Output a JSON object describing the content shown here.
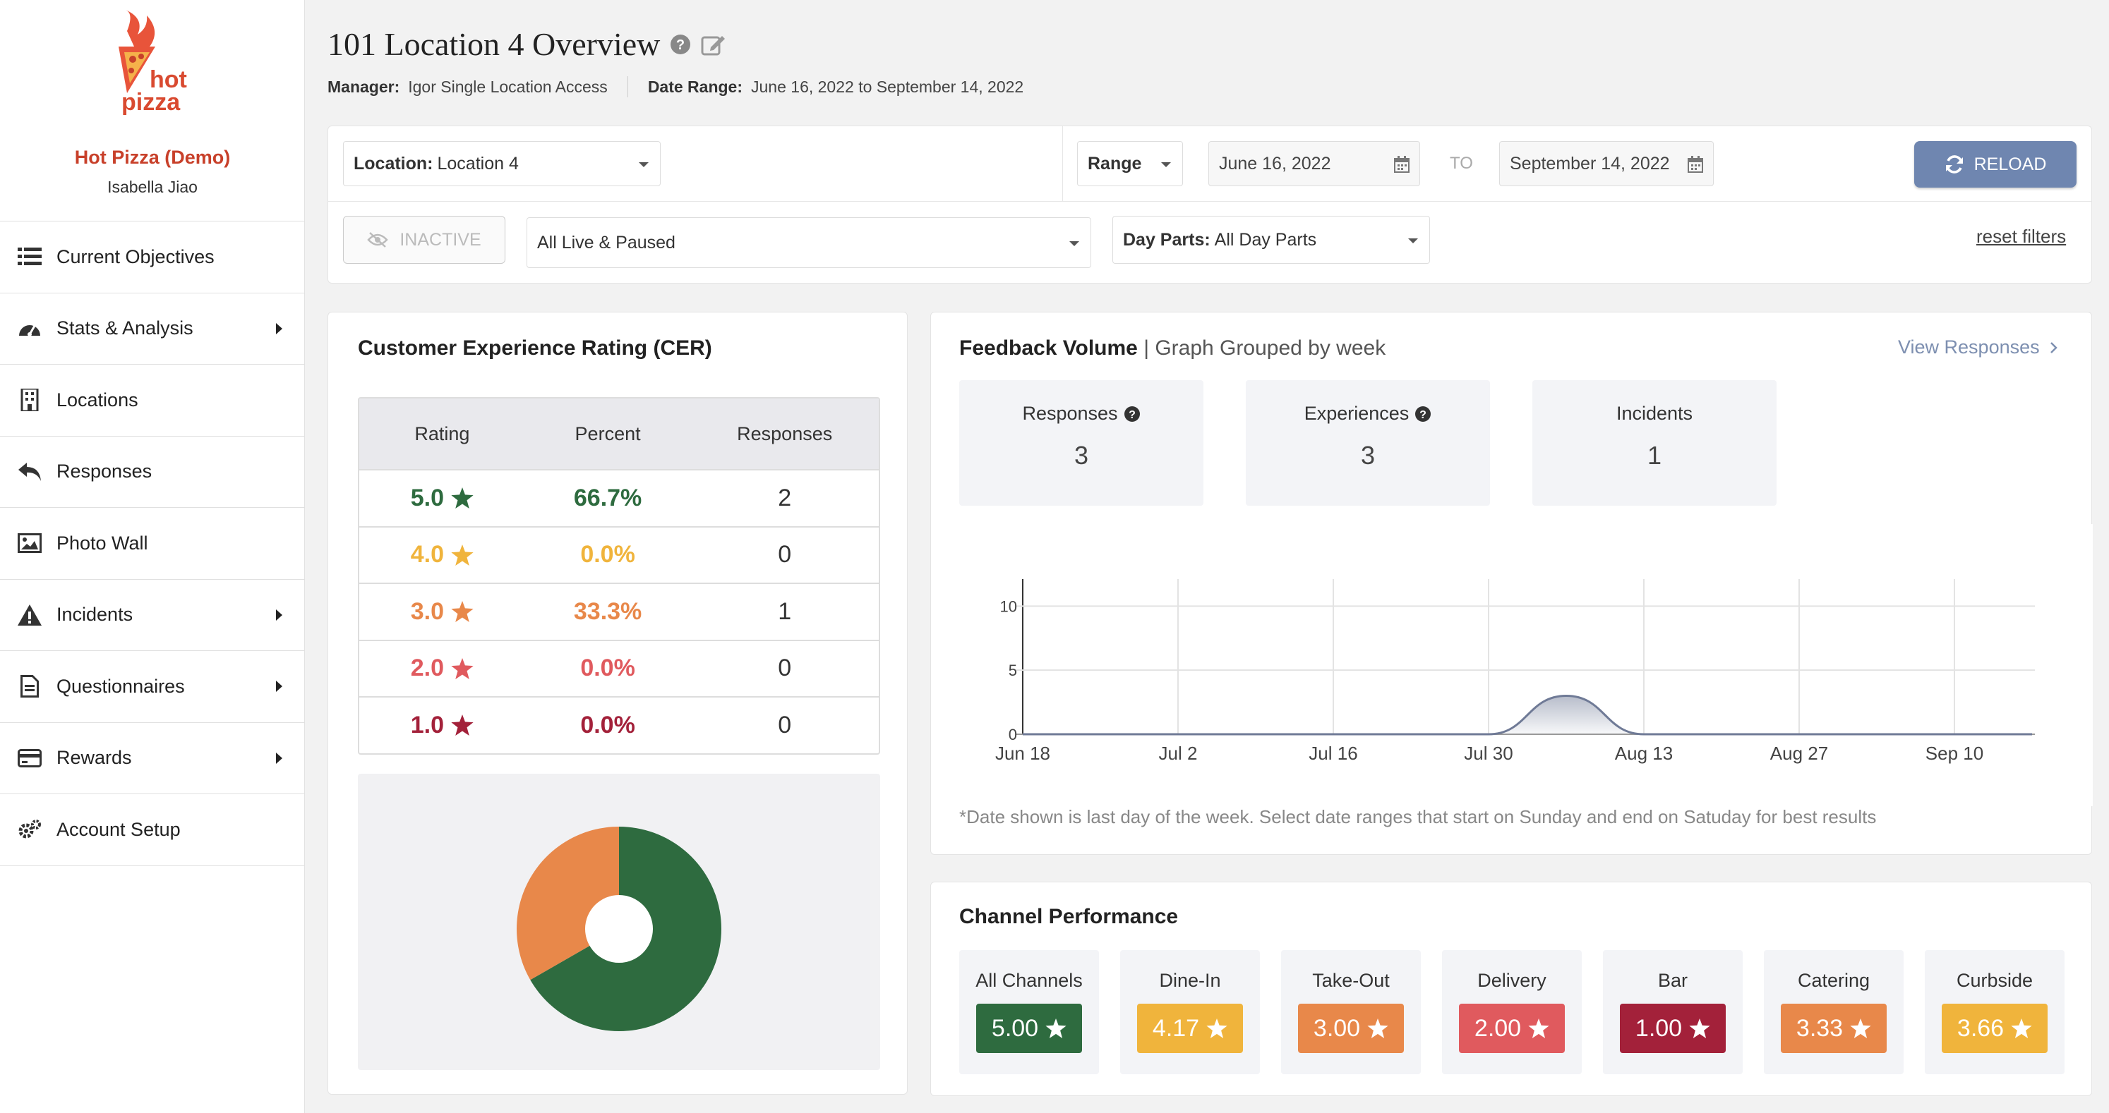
{
  "sidebar": {
    "logo_text_1": "hot",
    "logo_text_2": "pizza",
    "brand_name": "Hot Pizza (Demo)",
    "user_name": "Isabella Jiao",
    "items": [
      {
        "label": "Current Objectives",
        "icon": "list-icon"
      },
      {
        "label": "Stats & Analysis",
        "icon": "dashboard-icon"
      },
      {
        "label": "Locations",
        "icon": "building-icon"
      },
      {
        "label": "Responses",
        "icon": "reply-icon"
      },
      {
        "label": "Photo Wall",
        "icon": "image-icon"
      },
      {
        "label": "Incidents",
        "icon": "warning-icon"
      },
      {
        "label": "Questionnaires",
        "icon": "document-icon"
      },
      {
        "label": "Rewards",
        "icon": "credit-card-icon"
      },
      {
        "label": "Account Setup",
        "icon": "gears-icon"
      }
    ]
  },
  "header": {
    "title": "101 Location 4 Overview",
    "manager_label": "Manager:",
    "manager_value": "Igor Single Location Access",
    "date_range_label": "Date Range:",
    "date_range_value": "June 16, 2022 to September 14, 2022"
  },
  "filters": {
    "location_label": "Location:",
    "location_value": "Location 4",
    "range_label": "Range",
    "start_date": "June 16, 2022",
    "to_label": "TO",
    "end_date": "September 14, 2022",
    "reload_label": "RELOAD",
    "inactive_label": "INACTIVE",
    "status_value": "All Live & Paused",
    "day_parts_label": "Day Parts:",
    "day_parts_value": "All Day Parts",
    "reset_label": "reset filters"
  },
  "cer": {
    "title": "Customer Experience Rating (CER)",
    "headers": [
      "Rating",
      "Percent",
      "Responses"
    ],
    "rows": [
      {
        "rating": "5.0",
        "percent": "66.7%",
        "responses": "2",
        "color": "#2e6b3f"
      },
      {
        "rating": "4.0",
        "percent": "0.0%",
        "responses": "0",
        "color": "#f0b43c"
      },
      {
        "rating": "3.0",
        "percent": "33.3%",
        "responses": "1",
        "color": "#e8884a"
      },
      {
        "rating": "2.0",
        "percent": "0.0%",
        "responses": "0",
        "color": "#e05a5e"
      },
      {
        "rating": "1.0",
        "percent": "0.0%",
        "responses": "0",
        "color": "#a3213a"
      }
    ],
    "pie": [
      {
        "label": "5.0",
        "percent": 66.7,
        "color": "#2e6b3f"
      },
      {
        "label": "3.0",
        "percent": 33.3,
        "color": "#e8884a"
      }
    ]
  },
  "feedback": {
    "title": "Feedback Volume",
    "subtitle": "| Graph Grouped by week",
    "view_responses": "View Responses",
    "stats": [
      {
        "label": "Responses",
        "value": "3",
        "help": true
      },
      {
        "label": "Experiences",
        "value": "3",
        "help": true
      },
      {
        "label": "Incidents",
        "value": "1",
        "help": false
      }
    ],
    "note": "*Date shown is last day of the week. Select date ranges that start on Sunday and end on Satuday for best results"
  },
  "chart_data": {
    "type": "area",
    "title": "Feedback Volume",
    "x_ticks": [
      "Jun 18",
      "Jul 2",
      "Jul 16",
      "Jul 30",
      "Aug 13",
      "Aug 27",
      "Sep 10"
    ],
    "y_ticks": [
      0,
      5,
      10
    ],
    "ylim": [
      0,
      12
    ],
    "series": [
      {
        "name": "Responses",
        "x": [
          "Jun 18",
          "Jun 25",
          "Jul 2",
          "Jul 9",
          "Jul 16",
          "Jul 23",
          "Jul 30",
          "Aug 6",
          "Aug 13",
          "Aug 20",
          "Aug 27",
          "Sep 3",
          "Sep 10",
          "Sep 17"
        ],
        "values": [
          0,
          0,
          0,
          0,
          0,
          0,
          0,
          3,
          0,
          0,
          0,
          0,
          0,
          0
        ]
      }
    ]
  },
  "channel": {
    "title": "Channel Performance",
    "items": [
      {
        "label": "All Channels",
        "value": "5.00",
        "color": "#2e6b3f"
      },
      {
        "label": "Dine-In",
        "value": "4.17",
        "color": "#f0b43c"
      },
      {
        "label": "Take-Out",
        "value": "3.00",
        "color": "#e8884a"
      },
      {
        "label": "Delivery",
        "value": "2.00",
        "color": "#e05a5e"
      },
      {
        "label": "Bar",
        "value": "1.00",
        "color": "#a3213a"
      },
      {
        "label": "Catering",
        "value": "3.33",
        "color": "#e8884a"
      },
      {
        "label": "Curbside",
        "value": "3.66",
        "color": "#f0b43c"
      }
    ]
  }
}
